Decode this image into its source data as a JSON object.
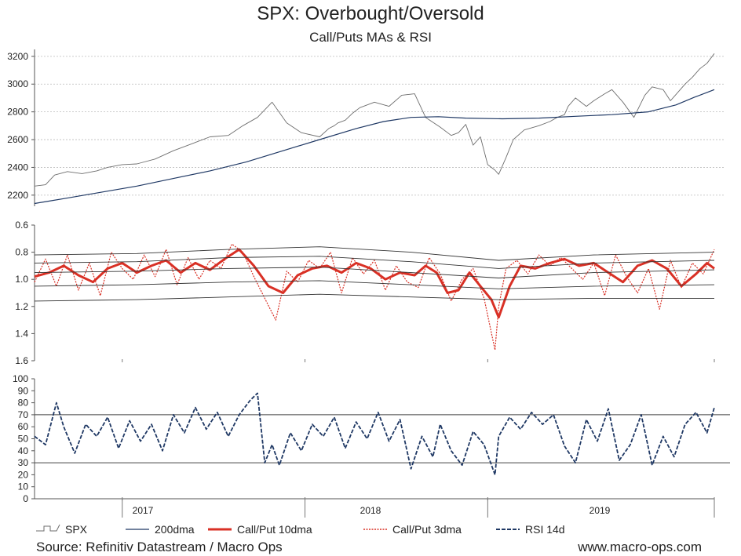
{
  "title": "SPX: Overbought/Oversold",
  "subtitle": "Call/Puts MAs & RSI",
  "source": "Source: Refinitiv Datastream / Macro Ops",
  "website": "www.macro-ops.com",
  "colors": {
    "spx": "#6e6e6e",
    "ma200": "#1f3864",
    "cp10": "#d93025",
    "cp3": "#d93025",
    "rsi": "#1f3864",
    "grid": "#bbbbbb",
    "axis": "#555555"
  },
  "legend": [
    {
      "key": "spx",
      "label": "SPX"
    },
    {
      "key": "ma200",
      "label": "200dma"
    },
    {
      "key": "cp10",
      "label": "Call/Put 10dma"
    },
    {
      "key": "cp3",
      "label": "Call/Put 3dma"
    },
    {
      "key": "rsi",
      "label": "RSI 14d"
    }
  ],
  "chart_data": [
    {
      "type": "line",
      "name": "spx_panel",
      "x_range": [
        "2016-06",
        "2019-07"
      ],
      "ylim": [
        2120,
        3250
      ],
      "yticks": [
        2200,
        2400,
        2600,
        2800,
        3000,
        3200
      ],
      "ytick_labels": [
        "2200",
        "2400",
        "2600",
        "2800",
        "3000",
        "3200"
      ],
      "series": [
        {
          "name": "SPX",
          "key": "spx",
          "x": [
            2016.44,
            2016.5,
            2016.55,
            2016.62,
            2016.7,
            2016.78,
            2016.84,
            2016.92,
            2017.0,
            2017.1,
            2017.2,
            2017.3,
            2017.4,
            2017.5,
            2017.58,
            2017.66,
            2017.74,
            2017.82,
            2017.9,
            2018.0,
            2018.05,
            2018.08,
            2018.1,
            2018.14,
            2018.18,
            2018.22,
            2018.3,
            2018.38,
            2018.45,
            2018.52,
            2018.58,
            2018.66,
            2018.72,
            2018.76,
            2018.8,
            2018.84,
            2018.88,
            2018.92,
            2018.96,
            2018.98,
            2019.02,
            2019.06,
            2019.12,
            2019.2,
            2019.26,
            2019.3,
            2019.34,
            2019.36,
            2019.4,
            2019.46,
            2019.5,
            2019.56,
            2019.6,
            2019.66,
            2019.72,
            2019.78,
            2019.82,
            2019.88,
            2019.92,
            2019.96,
            2020.0,
            2020.04,
            2020.08,
            2020.12,
            2020.16
          ],
          "values": [
            2265,
            2275,
            2345,
            2370,
            2355,
            2375,
            2400,
            2420,
            2425,
            2460,
            2520,
            2570,
            2620,
            2630,
            2700,
            2760,
            2870,
            2720,
            2650,
            2620,
            2680,
            2700,
            2720,
            2740,
            2790,
            2830,
            2870,
            2840,
            2920,
            2930,
            2760,
            2690,
            2630,
            2650,
            2710,
            2560,
            2620,
            2420,
            2380,
            2350,
            2470,
            2600,
            2670,
            2700,
            2730,
            2760,
            2780,
            2840,
            2900,
            2840,
            2880,
            2930,
            2960,
            2870,
            2760,
            2920,
            2980,
            2960,
            2880,
            2940,
            3000,
            3050,
            3110,
            3150,
            3220
          ]
        },
        {
          "name": "200dma",
          "key": "ma200",
          "x": [
            2016.44,
            2016.6,
            2016.8,
            2017.0,
            2017.2,
            2017.4,
            2017.6,
            2017.8,
            2018.0,
            2018.2,
            2018.35,
            2018.5,
            2018.65,
            2018.8,
            2019.0,
            2019.2,
            2019.4,
            2019.6,
            2019.8,
            2019.95,
            2020.05,
            2020.16
          ],
          "values": [
            2140,
            2175,
            2220,
            2265,
            2320,
            2375,
            2440,
            2520,
            2600,
            2680,
            2730,
            2760,
            2765,
            2755,
            2750,
            2755,
            2768,
            2780,
            2800,
            2850,
            2905,
            2960
          ]
        }
      ]
    },
    {
      "type": "line",
      "name": "callput_panel",
      "inverted_axis": true,
      "ylim": [
        0.6,
        1.6
      ],
      "yticks": [
        0.6,
        0.8,
        1.0,
        1.2,
        1.4,
        1.6
      ],
      "ytick_labels": [
        "0.6",
        "0.8",
        "1.0",
        "1.2",
        "1.4",
        "1.6"
      ],
      "series": [
        {
          "name": "Call/Put 10dma",
          "key": "cp10",
          "x": [
            2016.44,
            2016.52,
            2016.6,
            2016.68,
            2016.76,
            2016.84,
            2016.92,
            2017.0,
            2017.08,
            2017.16,
            2017.24,
            2017.32,
            2017.4,
            2017.48,
            2017.56,
            2017.64,
            2017.72,
            2017.8,
            2017.88,
            2017.96,
            2018.04,
            2018.12,
            2018.2,
            2018.28,
            2018.36,
            2018.44,
            2018.52,
            2018.58,
            2018.64,
            2018.7,
            2018.76,
            2018.82,
            2018.88,
            2018.94,
            2018.98,
            2019.04,
            2019.1,
            2019.18,
            2019.26,
            2019.34,
            2019.42,
            2019.5,
            2019.58,
            2019.66,
            2019.74,
            2019.82,
            2019.9,
            2019.98,
            2020.06,
            2020.12,
            2020.16
          ],
          "values": [
            0.98,
            0.95,
            0.9,
            0.97,
            1.02,
            0.92,
            0.88,
            0.95,
            0.9,
            0.86,
            0.95,
            0.88,
            0.93,
            0.85,
            0.78,
            0.9,
            1.05,
            1.1,
            0.97,
            0.92,
            0.9,
            0.95,
            0.88,
            0.92,
            1.0,
            0.95,
            0.97,
            0.9,
            0.95,
            1.1,
            1.08,
            0.95,
            1.05,
            1.15,
            1.28,
            1.05,
            0.9,
            0.92,
            0.88,
            0.85,
            0.9,
            0.88,
            0.95,
            1.02,
            0.9,
            0.86,
            0.92,
            1.05,
            0.96,
            0.88,
            0.92
          ]
        },
        {
          "name": "Call/Put 3dma",
          "key": "cp3",
          "x": [
            2016.44,
            2016.5,
            2016.56,
            2016.62,
            2016.68,
            2016.74,
            2016.8,
            2016.86,
            2016.92,
            2016.98,
            2017.04,
            2017.1,
            2017.16,
            2017.22,
            2017.28,
            2017.34,
            2017.4,
            2017.46,
            2017.52,
            2017.58,
            2017.64,
            2017.7,
            2017.76,
            2017.82,
            2017.88,
            2017.94,
            2018.0,
            2018.06,
            2018.12,
            2018.18,
            2018.24,
            2018.3,
            2018.36,
            2018.42,
            2018.48,
            2018.54,
            2018.6,
            2018.66,
            2018.72,
            2018.78,
            2018.84,
            2018.9,
            2018.96,
            2018.98,
            2019.02,
            2019.08,
            2019.14,
            2019.2,
            2019.26,
            2019.32,
            2019.38,
            2019.44,
            2019.5,
            2019.56,
            2019.62,
            2019.68,
            2019.74,
            2019.8,
            2019.86,
            2019.92,
            2019.98,
            2020.04,
            2020.1,
            2020.16
          ],
          "values": [
            1.02,
            0.85,
            1.05,
            0.82,
            1.08,
            0.88,
            1.12,
            0.8,
            0.92,
            1.0,
            0.82,
            0.98,
            0.78,
            1.04,
            0.84,
            1.0,
            0.86,
            0.92,
            0.74,
            0.8,
            0.98,
            1.14,
            1.3,
            0.94,
            1.02,
            0.86,
            0.92,
            0.8,
            1.1,
            0.84,
            0.96,
            0.86,
            1.08,
            0.9,
            1.02,
            1.06,
            0.84,
            0.96,
            1.16,
            1.0,
            0.92,
            1.14,
            1.52,
            1.2,
            0.92,
            0.86,
            0.96,
            0.82,
            0.9,
            0.84,
            0.92,
            1.0,
            0.88,
            1.12,
            0.82,
            0.98,
            1.1,
            0.92,
            1.22,
            0.86,
            1.06,
            0.88,
            0.96,
            0.78
          ]
        },
        {
          "name": "upper_band_2",
          "key": "band",
          "x": [
            2016.44,
            2017.0,
            2017.5,
            2018.0,
            2018.5,
            2018.98,
            2019.5,
            2020.16
          ],
          "values": [
            0.82,
            0.81,
            0.78,
            0.76,
            0.8,
            0.86,
            0.82,
            0.8
          ]
        },
        {
          "name": "upper_band_1",
          "key": "band",
          "x": [
            2016.44,
            2017.0,
            2017.5,
            2018.0,
            2018.5,
            2018.98,
            2019.5,
            2020.16
          ],
          "values": [
            0.88,
            0.87,
            0.84,
            0.83,
            0.87,
            0.92,
            0.88,
            0.86
          ]
        },
        {
          "name": "mid_band",
          "key": "band",
          "x": [
            2016.44,
            2017.0,
            2017.5,
            2018.0,
            2018.5,
            2018.98,
            2019.5,
            2020.16
          ],
          "values": [
            0.95,
            0.94,
            0.92,
            0.91,
            0.95,
            0.99,
            0.95,
            0.93
          ]
        },
        {
          "name": "lower_band_1",
          "key": "band",
          "x": [
            2016.44,
            2017.0,
            2017.5,
            2018.0,
            2018.5,
            2018.98,
            2019.5,
            2020.16
          ],
          "values": [
            1.05,
            1.04,
            1.02,
            1.01,
            1.04,
            1.07,
            1.05,
            1.04
          ]
        },
        {
          "name": "lower_band_2",
          "key": "band",
          "x": [
            2016.44,
            2017.0,
            2017.5,
            2018.0,
            2018.5,
            2018.98,
            2019.5,
            2020.16
          ],
          "values": [
            1.16,
            1.15,
            1.13,
            1.11,
            1.13,
            1.15,
            1.14,
            1.14
          ]
        }
      ]
    },
    {
      "type": "line",
      "name": "rsi_panel",
      "ylim": [
        0,
        100
      ],
      "yticks": [
        0,
        10,
        20,
        30,
        40,
        50,
        60,
        70,
        80,
        90,
        100
      ],
      "ytick_labels": [
        "0",
        "10",
        "20",
        "30",
        "40",
        "50",
        "60",
        "70",
        "80",
        "90",
        "100"
      ],
      "reference_lines": [
        30,
        70
      ],
      "xticks": [
        2016.92,
        2017.92,
        2018.92,
        2020.16
      ],
      "xtick_labels": [
        "2017",
        "2018",
        "2019"
      ],
      "series": [
        {
          "name": "RSI 14d",
          "key": "rsi",
          "x": [
            2016.44,
            2016.5,
            2016.56,
            2016.6,
            2016.66,
            2016.72,
            2016.78,
            2016.84,
            2016.9,
            2016.96,
            2017.02,
            2017.08,
            2017.14,
            2017.2,
            2017.26,
            2017.32,
            2017.38,
            2017.44,
            2017.5,
            2017.56,
            2017.62,
            2017.66,
            2017.7,
            2017.74,
            2017.78,
            2017.84,
            2017.9,
            2017.96,
            2018.02,
            2018.08,
            2018.14,
            2018.2,
            2018.26,
            2018.32,
            2018.38,
            2018.44,
            2018.5,
            2018.56,
            2018.62,
            2018.66,
            2018.72,
            2018.78,
            2018.84,
            2018.9,
            2018.96,
            2018.98,
            2019.04,
            2019.1,
            2019.16,
            2019.22,
            2019.28,
            2019.34,
            2019.4,
            2019.46,
            2019.52,
            2019.58,
            2019.64,
            2019.7,
            2019.76,
            2019.82,
            2019.88,
            2019.94,
            2020.0,
            2020.06,
            2020.12,
            2020.16
          ],
          "values": [
            52,
            45,
            80,
            60,
            38,
            62,
            52,
            68,
            42,
            65,
            48,
            62,
            40,
            70,
            55,
            76,
            58,
            72,
            52,
            70,
            82,
            88,
            30,
            45,
            28,
            55,
            40,
            62,
            52,
            68,
            42,
            64,
            50,
            72,
            48,
            66,
            25,
            52,
            35,
            62,
            40,
            28,
            56,
            45,
            20,
            52,
            68,
            58,
            72,
            62,
            70,
            44,
            30,
            66,
            48,
            75,
            32,
            45,
            70,
            28,
            52,
            35,
            62,
            72,
            55,
            76
          ]
        }
      ]
    }
  ]
}
